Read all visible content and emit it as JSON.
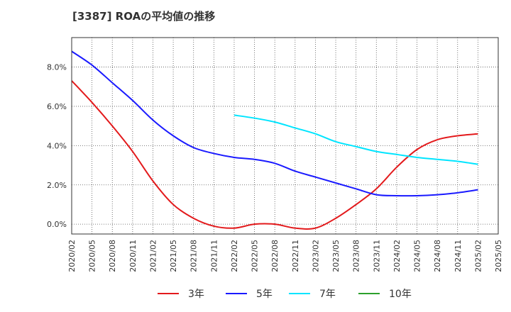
{
  "chart_data": {
    "type": "line",
    "title": "[3387]  ROAの平均値の推移",
    "xlabel": "",
    "ylabel": "",
    "categories": [
      "2020/02",
      "2020/05",
      "2020/08",
      "2020/11",
      "2021/02",
      "2021/05",
      "2021/08",
      "2021/11",
      "2022/02",
      "2022/05",
      "2022/08",
      "2022/11",
      "2023/02",
      "2023/05",
      "2023/08",
      "2023/11",
      "2024/02",
      "2024/05",
      "2024/08",
      "2024/11",
      "2025/02",
      "2025/05"
    ],
    "y_ticks": [
      "0.0%",
      "2.0%",
      "4.0%",
      "6.0%",
      "8.0%"
    ],
    "ylim": [
      -0.5,
      9.5
    ],
    "grid": true,
    "legend_position": "bottom",
    "series": [
      {
        "name": "3年",
        "color": "#e31a1c",
        "values": [
          7.3,
          6.2,
          5.0,
          3.7,
          2.2,
          1.0,
          0.3,
          -0.1,
          -0.2,
          0.0,
          0.0,
          -0.2,
          -0.2,
          0.3,
          1.0,
          1.8,
          2.9,
          3.8,
          4.3,
          4.5,
          4.6,
          null
        ]
      },
      {
        "name": "5年",
        "color": "#1a1aff",
        "values": [
          8.8,
          8.1,
          7.2,
          6.3,
          5.3,
          4.5,
          3.9,
          3.6,
          3.4,
          3.3,
          3.1,
          2.7,
          2.4,
          2.1,
          1.8,
          1.5,
          1.45,
          1.45,
          1.5,
          1.6,
          1.75,
          null
        ]
      },
      {
        "name": "7年",
        "color": "#00e5ff",
        "values": [
          null,
          null,
          null,
          null,
          null,
          null,
          null,
          null,
          5.55,
          5.4,
          5.2,
          4.9,
          4.6,
          4.2,
          3.95,
          3.7,
          3.55,
          3.4,
          3.3,
          3.2,
          3.05,
          null
        ]
      },
      {
        "name": "10年",
        "color": "#2ca02c",
        "values": [
          null,
          null,
          null,
          null,
          null,
          null,
          null,
          null,
          null,
          null,
          null,
          null,
          null,
          null,
          null,
          null,
          null,
          null,
          null,
          null,
          null,
          null
        ]
      }
    ]
  }
}
